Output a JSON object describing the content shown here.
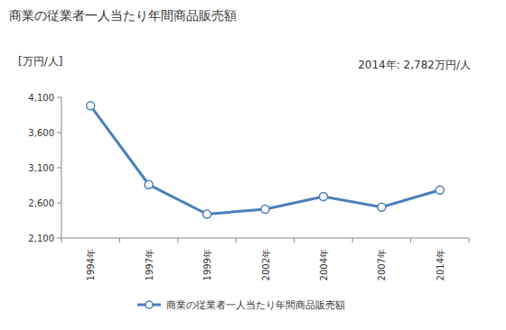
{
  "chart_data": {
    "type": "line",
    "title": "商業の従業者一人当たり年間商品販売額",
    "y_label": "[万円/人]",
    "annotation": "2014年: 2,782万円/人",
    "categories": [
      "1994年",
      "1997年",
      "1999年",
      "2002年",
      "2004年",
      "2007年",
      "2014年"
    ],
    "series": [
      {
        "name": "商業の従業者一人当たり年間商品販売額",
        "color": "#4a7ebb",
        "marker": "circle",
        "values": [
          3980,
          2860,
          2440,
          2510,
          2690,
          2540,
          2782
        ]
      }
    ],
    "ylim": [
      2100,
      4100
    ],
    "yticks": [
      {
        "value": 2100,
        "label": "2,100"
      },
      {
        "value": 2600,
        "label": "2,600"
      },
      {
        "value": 3100,
        "label": "3,100"
      },
      {
        "value": 3600,
        "label": "3,600"
      },
      {
        "value": 4100,
        "label": "4,100"
      }
    ],
    "grid": false,
    "legend": "bottom"
  }
}
